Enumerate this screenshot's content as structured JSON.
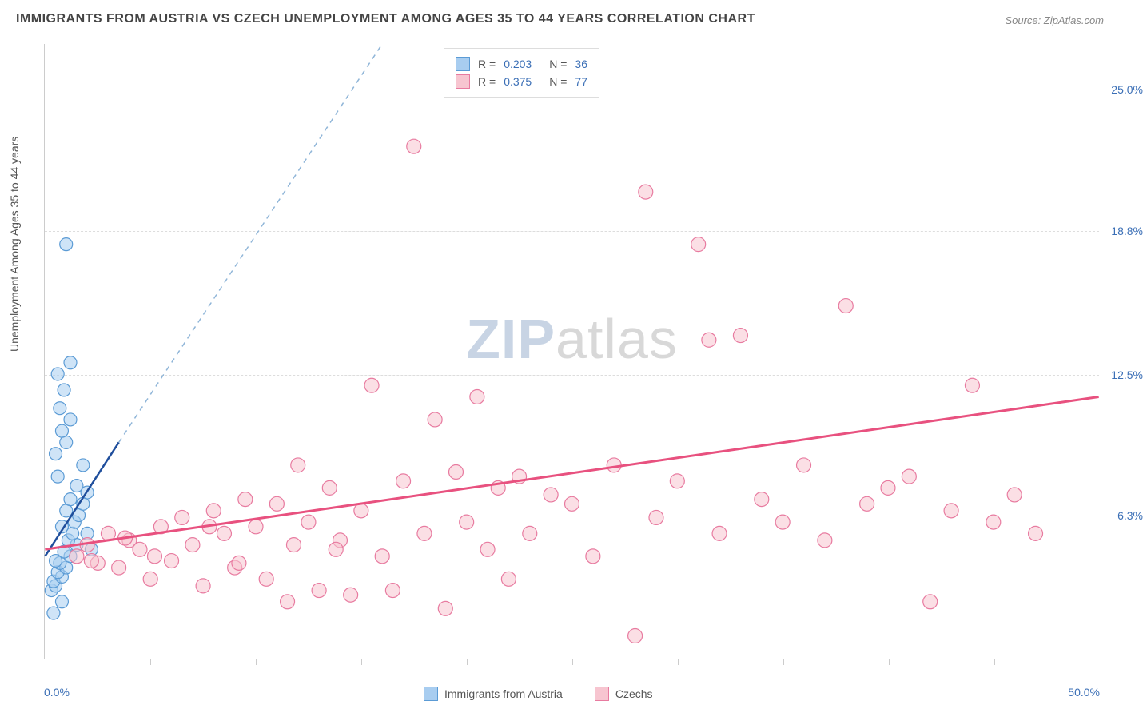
{
  "title": "IMMIGRANTS FROM AUSTRIA VS CZECH UNEMPLOYMENT AMONG AGES 35 TO 44 YEARS CORRELATION CHART",
  "source": "Source: ZipAtlas.com",
  "y_axis_label": "Unemployment Among Ages 35 to 44 years",
  "watermark_zip": "ZIP",
  "watermark_atlas": "atlas",
  "chart": {
    "type": "scatter",
    "xlim": [
      0,
      50
    ],
    "ylim": [
      0,
      27
    ],
    "x_min_label": "0.0%",
    "x_max_label": "50.0%",
    "x_label_color": "#3b6fb6",
    "y_ticks": [
      {
        "value": 6.3,
        "label": "6.3%"
      },
      {
        "value": 12.5,
        "label": "12.5%"
      },
      {
        "value": 18.8,
        "label": "18.8%"
      },
      {
        "value": 25.0,
        "label": "25.0%"
      }
    ],
    "y_tick_color": "#3b6fb6",
    "x_tick_positions": [
      5,
      10,
      15,
      20,
      25,
      30,
      35,
      40,
      45
    ],
    "grid_color": "#dddddd",
    "background_color": "#ffffff",
    "series": [
      {
        "name": "Immigrants from Austria",
        "color_fill": "#a8cdf0",
        "color_stroke": "#5b9bd5",
        "r_value": "0.203",
        "n_value": "36",
        "marker_radius": 8,
        "points": [
          [
            0.3,
            3.0
          ],
          [
            0.5,
            3.2
          ],
          [
            0.4,
            3.4
          ],
          [
            0.8,
            3.6
          ],
          [
            0.6,
            3.8
          ],
          [
            1.0,
            4.0
          ],
          [
            0.7,
            4.2
          ],
          [
            1.2,
            4.5
          ],
          [
            0.9,
            4.7
          ],
          [
            1.5,
            5.0
          ],
          [
            1.1,
            5.2
          ],
          [
            1.3,
            5.5
          ],
          [
            0.8,
            5.8
          ],
          [
            1.4,
            6.0
          ],
          [
            1.6,
            6.3
          ],
          [
            1.0,
            6.5
          ],
          [
            1.8,
            6.8
          ],
          [
            1.2,
            7.0
          ],
          [
            2.0,
            7.3
          ],
          [
            1.5,
            7.6
          ],
          [
            0.6,
            8.0
          ],
          [
            1.8,
            8.5
          ],
          [
            0.5,
            9.0
          ],
          [
            1.0,
            9.5
          ],
          [
            0.8,
            10.0
          ],
          [
            1.2,
            10.5
          ],
          [
            0.7,
            11.0
          ],
          [
            0.9,
            11.8
          ],
          [
            0.6,
            12.5
          ],
          [
            1.2,
            13.0
          ],
          [
            0.4,
            2.0
          ],
          [
            0.8,
            2.5
          ],
          [
            2.0,
            5.5
          ],
          [
            2.2,
            4.8
          ],
          [
            1.0,
            18.2
          ],
          [
            0.5,
            4.3
          ]
        ],
        "trend_line": {
          "x1": 0,
          "y1": 4.5,
          "x2": 3.5,
          "y2": 9.5,
          "color": "#1f4e9c",
          "width": 2.5
        },
        "trend_line_dashed": {
          "x1": 3.5,
          "y1": 9.5,
          "x2": 16,
          "y2": 27,
          "color": "#8fb5d8",
          "width": 1.5
        }
      },
      {
        "name": "Czechs",
        "color_fill": "#f7c5d0",
        "color_stroke": "#e87ba0",
        "r_value": "0.375",
        "n_value": "77",
        "marker_radius": 9,
        "points": [
          [
            1.5,
            4.5
          ],
          [
            2.0,
            5.0
          ],
          [
            2.5,
            4.2
          ],
          [
            3.0,
            5.5
          ],
          [
            3.5,
            4.0
          ],
          [
            4.0,
            5.2
          ],
          [
            4.5,
            4.8
          ],
          [
            5.0,
            3.5
          ],
          [
            5.5,
            5.8
          ],
          [
            6.0,
            4.3
          ],
          [
            6.5,
            6.2
          ],
          [
            7.0,
            5.0
          ],
          [
            7.5,
            3.2
          ],
          [
            8.0,
            6.5
          ],
          [
            8.5,
            5.5
          ],
          [
            9.0,
            4.0
          ],
          [
            9.5,
            7.0
          ],
          [
            10.0,
            5.8
          ],
          [
            10.5,
            3.5
          ],
          [
            11.0,
            6.8
          ],
          [
            11.5,
            2.5
          ],
          [
            12.0,
            8.5
          ],
          [
            12.5,
            6.0
          ],
          [
            13.0,
            3.0
          ],
          [
            13.5,
            7.5
          ],
          [
            14.0,
            5.2
          ],
          [
            14.5,
            2.8
          ],
          [
            15.0,
            6.5
          ],
          [
            15.5,
            12.0
          ],
          [
            16.0,
            4.5
          ],
          [
            16.5,
            3.0
          ],
          [
            17.0,
            7.8
          ],
          [
            17.5,
            22.5
          ],
          [
            18.0,
            5.5
          ],
          [
            18.5,
            10.5
          ],
          [
            19.0,
            2.2
          ],
          [
            19.5,
            8.2
          ],
          [
            20.0,
            6.0
          ],
          [
            20.5,
            11.5
          ],
          [
            21.0,
            4.8
          ],
          [
            21.5,
            7.5
          ],
          [
            22.0,
            3.5
          ],
          [
            22.5,
            8.0
          ],
          [
            23.0,
            5.5
          ],
          [
            24.0,
            7.2
          ],
          [
            25.0,
            6.8
          ],
          [
            26.0,
            4.5
          ],
          [
            27.0,
            8.5
          ],
          [
            28.0,
            1.0
          ],
          [
            28.5,
            20.5
          ],
          [
            29.0,
            6.2
          ],
          [
            30.0,
            7.8
          ],
          [
            31.0,
            18.2
          ],
          [
            31.5,
            14.0
          ],
          [
            32.0,
            5.5
          ],
          [
            33.0,
            14.2
          ],
          [
            34.0,
            7.0
          ],
          [
            35.0,
            6.0
          ],
          [
            36.0,
            8.5
          ],
          [
            37.0,
            5.2
          ],
          [
            38.0,
            15.5
          ],
          [
            39.0,
            6.8
          ],
          [
            40.0,
            7.5
          ],
          [
            41.0,
            8.0
          ],
          [
            42.0,
            2.5
          ],
          [
            43.0,
            6.5
          ],
          [
            44.0,
            12.0
          ],
          [
            45.0,
            6.0
          ],
          [
            46.0,
            7.2
          ],
          [
            47.0,
            5.5
          ],
          [
            2.2,
            4.3
          ],
          [
            3.8,
            5.3
          ],
          [
            5.2,
            4.5
          ],
          [
            7.8,
            5.8
          ],
          [
            9.2,
            4.2
          ],
          [
            11.8,
            5.0
          ],
          [
            13.8,
            4.8
          ]
        ],
        "trend_line": {
          "x1": 0,
          "y1": 4.8,
          "x2": 50,
          "y2": 11.5,
          "color": "#e8517f",
          "width": 3
        }
      }
    ],
    "legend_top": {
      "border_color": "#dddddd",
      "bg_color": "#ffffff"
    },
    "legend_bottom_items": [
      {
        "label": "Immigrants from Austria",
        "fill": "#a8cdf0",
        "stroke": "#5b9bd5"
      },
      {
        "label": "Czechs",
        "fill": "#f7c5d0",
        "stroke": "#e87ba0"
      }
    ]
  }
}
